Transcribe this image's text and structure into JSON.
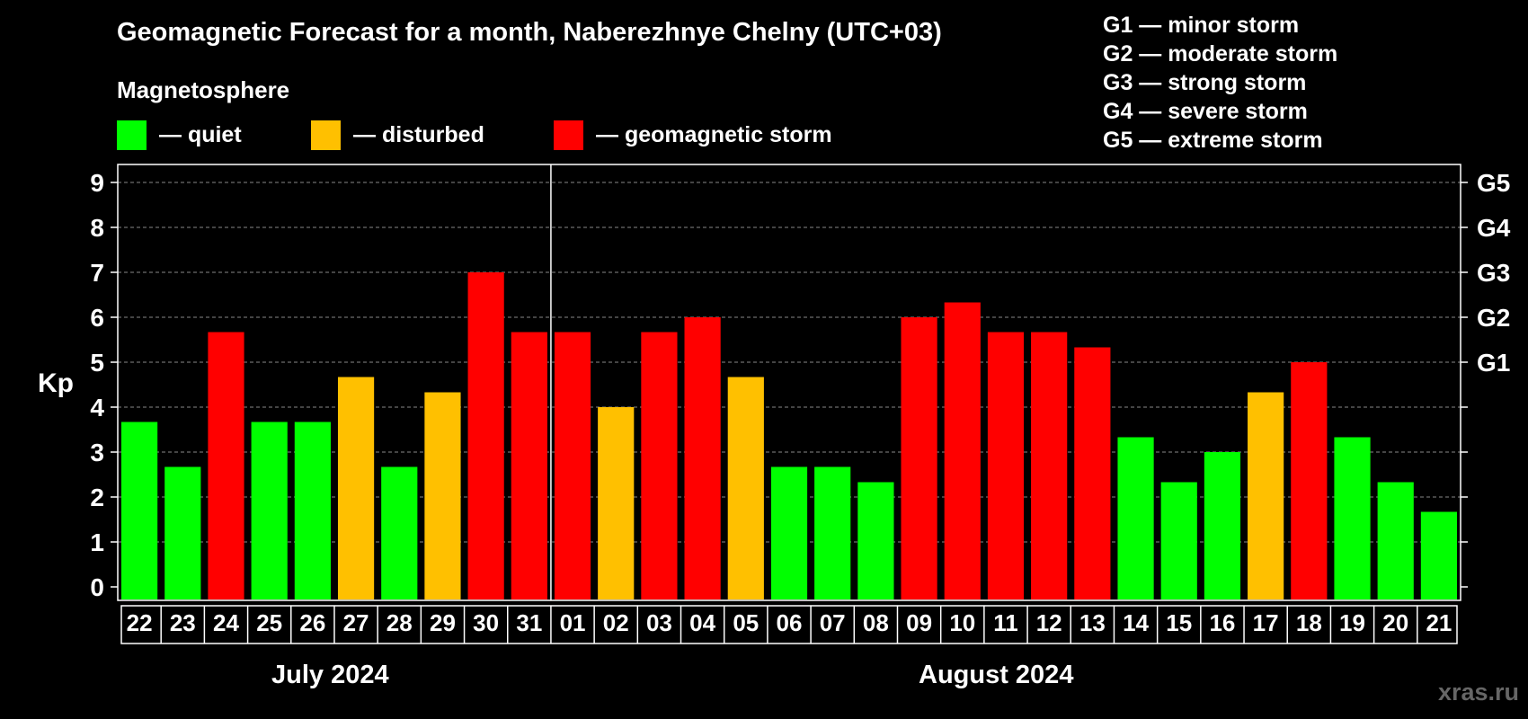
{
  "title": "Geomagnetic Forecast for a month, Naberezhnye Chelny (UTC+03)",
  "subtitle": "Magnetosphere",
  "legend": [
    {
      "label": "— quiet",
      "color": "#00ff00"
    },
    {
      "label": "— disturbed",
      "color": "#ffc000"
    },
    {
      "label": "— geomagnetic storm",
      "color": "#ff0000"
    }
  ],
  "g_levels": [
    "G1 — minor storm",
    "G2 — moderate storm",
    "G3 — strong storm",
    "G4 — severe storm",
    "G5 — extreme storm"
  ],
  "months": {
    "first": "July 2024",
    "second": "August 2024"
  },
  "watermark": "xras.ru",
  "colors": {
    "quiet": "#00ff00",
    "disturbed": "#ffc000",
    "storm": "#ff0000",
    "grid": "#888888",
    "axis": "#ffffff"
  },
  "chart_data": {
    "type": "bar",
    "ylabel": "Kp",
    "ylim": [
      0,
      9
    ],
    "yticks": [
      "0",
      "1",
      "2",
      "3",
      "4",
      "5",
      "6",
      "7",
      "8",
      "9"
    ],
    "right_tick_labels": [
      {
        "kp": 5,
        "label": "G1"
      },
      {
        "kp": 6,
        "label": "G2"
      },
      {
        "kp": 7,
        "label": "G3"
      },
      {
        "kp": 8,
        "label": "G4"
      },
      {
        "kp": 9,
        "label": "G5"
      }
    ],
    "categories": [
      "22",
      "23",
      "24",
      "25",
      "26",
      "27",
      "28",
      "29",
      "30",
      "31",
      "01",
      "02",
      "03",
      "04",
      "05",
      "06",
      "07",
      "08",
      "09",
      "10",
      "11",
      "12",
      "13",
      "14",
      "15",
      "16",
      "17",
      "18",
      "19",
      "20",
      "21"
    ],
    "values": [
      3.67,
      2.67,
      5.67,
      3.67,
      3.67,
      4.67,
      2.67,
      4.33,
      7.0,
      5.67,
      5.67,
      4.0,
      5.67,
      6.0,
      4.67,
      2.67,
      2.67,
      2.33,
      6.0,
      6.33,
      5.67,
      5.67,
      5.33,
      3.33,
      2.33,
      3.0,
      4.33,
      5.0,
      3.33,
      2.33,
      1.67
    ],
    "levels": [
      "quiet",
      "quiet",
      "storm",
      "quiet",
      "quiet",
      "disturbed",
      "quiet",
      "disturbed",
      "storm",
      "storm",
      "storm",
      "disturbed",
      "storm",
      "storm",
      "disturbed",
      "quiet",
      "quiet",
      "quiet",
      "storm",
      "storm",
      "storm",
      "storm",
      "storm",
      "quiet",
      "quiet",
      "quiet",
      "disturbed",
      "storm",
      "quiet",
      "quiet",
      "quiet"
    ],
    "grid": true,
    "month_divider_after": "31"
  }
}
